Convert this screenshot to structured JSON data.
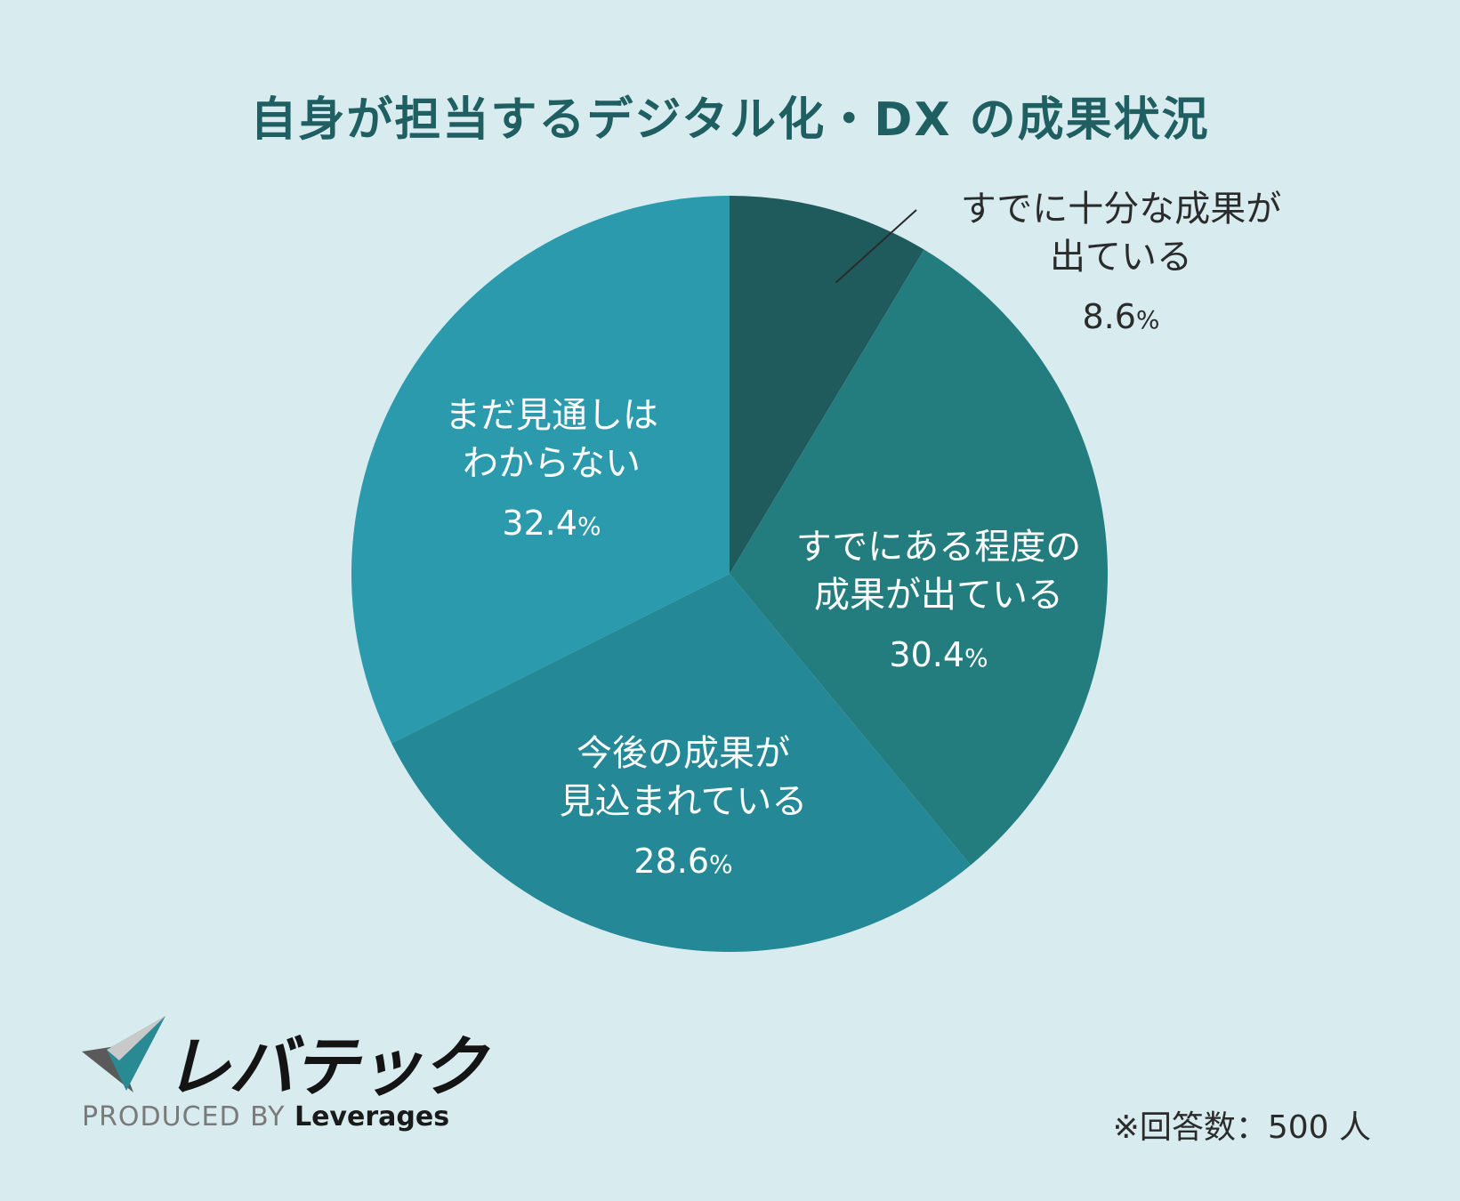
{
  "title": "自身が担当するデジタル化・DX の成果状況",
  "chart_data": {
    "type": "pie",
    "title": "自身が担当するデジタル化・DX の成果状況",
    "slices": [
      {
        "line1": "すでに十分な成果が",
        "line2": "出ている",
        "value": 8.6,
        "pct_text": "8.6",
        "color": "#1f5b5d"
      },
      {
        "line1": "すでにある程度の",
        "line2": "成果が出ている",
        "value": 30.4,
        "pct_text": "30.4",
        "color": "#237d7f"
      },
      {
        "line1": "今後の成果が",
        "line2": "見込まれている",
        "value": 28.6,
        "pct_text": "28.6",
        "color": "#248896"
      },
      {
        "line1": "まだ見通しは",
        "line2": "わからない",
        "value": 32.4,
        "pct_text": "32.4",
        "color": "#2a9aac"
      }
    ],
    "unit": "%"
  },
  "note": "※回答数：500 人",
  "logo": {
    "word": "レバテック",
    "produced_by": "PRODUCED BY",
    "brand": "Leverages"
  }
}
